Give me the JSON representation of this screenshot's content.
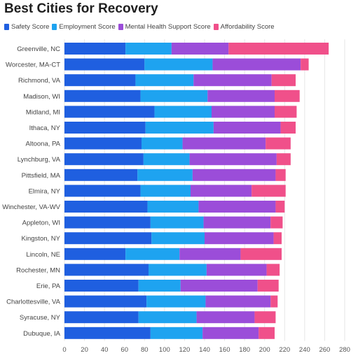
{
  "chart_data": {
    "type": "bar",
    "orientation": "horizontal",
    "stacked": true,
    "title": "Best Cities for Recovery",
    "xlim": [
      0,
      280
    ],
    "xticks": [
      0,
      20,
      40,
      60,
      80,
      100,
      120,
      140,
      160,
      180,
      200,
      220,
      240,
      260,
      280
    ],
    "grid": true,
    "legend_placement": "top-left",
    "categories": [
      "Greenville, NC",
      "Worcester, MA-CT",
      "Richmond, VA",
      "Madison, WI",
      "Midland, MI",
      "Ithaca, NY",
      "Altoona, PA",
      "Lynchburg, VA",
      "Pittsfield, MA",
      "Elmira, NY",
      "Winchester, VA-WV",
      "Appleton, WI",
      "Kingston, NY",
      "Lincoln, NE",
      "Rochester, MN",
      "Erie, PA",
      "Charlottesville, VA",
      "Syracuse, NY",
      "Dubuque, IA"
    ],
    "series": [
      {
        "name": "Safety Score",
        "color": "#1f5fe0",
        "values": [
          61,
          80,
          71,
          76,
          90,
          81,
          77,
          79,
          73,
          76,
          83,
          86,
          87,
          61,
          84,
          74,
          82,
          74,
          86
        ]
      },
      {
        "name": "Employment Score",
        "color": "#1ea3f0",
        "values": [
          46,
          68,
          58,
          67,
          57,
          68,
          41,
          46,
          55,
          50,
          51,
          53,
          53,
          54,
          58,
          42,
          59,
          58,
          52
        ]
      },
      {
        "name": "Mental Health Support Score",
        "color": "#9b4dd9",
        "values": [
          57,
          88,
          78,
          67,
          63,
          67,
          83,
          87,
          83,
          61,
          77,
          67,
          69,
          61,
          60,
          77,
          65,
          58,
          56
        ]
      },
      {
        "name": "Affordability Score",
        "color": "#f0508a",
        "values": [
          100,
          8,
          24,
          25,
          22,
          15,
          25,
          14,
          10,
          34,
          9,
          12,
          8,
          41,
          13,
          21,
          7,
          21,
          16
        ]
      }
    ]
  }
}
